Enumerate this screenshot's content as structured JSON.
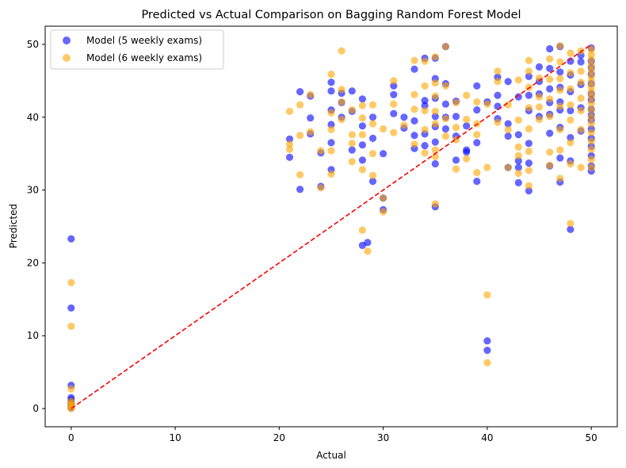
{
  "chart_data": {
    "type": "scatter",
    "title": "Predicted vs Actual Comparison on Bagging Random Forest Model",
    "xlabel": "Actual",
    "ylabel": "Predicted",
    "xlim": [
      -2.5,
      52.5
    ],
    "ylim": [
      -2.5,
      52.5
    ],
    "xticks": [
      0,
      10,
      20,
      30,
      40,
      50
    ],
    "yticks": [
      0,
      10,
      20,
      30,
      40,
      50
    ],
    "grid": false,
    "legend_position": "top-left",
    "reference_line": {
      "x": [
        0,
        50
      ],
      "y": [
        0,
        50
      ],
      "color": "#ff0000",
      "style": "dashed"
    },
    "series": [
      {
        "name": "Model (5 weekly exams)",
        "color": "#0000ff",
        "points": [
          [
            0,
            23.3
          ],
          [
            0,
            13.8
          ],
          [
            0,
            3.2
          ],
          [
            0,
            1.5
          ],
          [
            0,
            1.2
          ],
          [
            0,
            0.8
          ],
          [
            0,
            0.5
          ],
          [
            0,
            0.3
          ],
          [
            0,
            0.1
          ],
          [
            21,
            37
          ],
          [
            21,
            34.5
          ],
          [
            22,
            43.5
          ],
          [
            22,
            30.1
          ],
          [
            23,
            42.9
          ],
          [
            23,
            39.9
          ],
          [
            23,
            37.7
          ],
          [
            24,
            30.5
          ],
          [
            24,
            35.1
          ],
          [
            25,
            44.8
          ],
          [
            25,
            43.6
          ],
          [
            25,
            41
          ],
          [
            25,
            39
          ],
          [
            25,
            36.5
          ],
          [
            25,
            32.8
          ],
          [
            26,
            43.3
          ],
          [
            26,
            42
          ],
          [
            26,
            40
          ],
          [
            27,
            43.6
          ],
          [
            27,
            40.8
          ],
          [
            27,
            35.5
          ],
          [
            28,
            42.5
          ],
          [
            28,
            38.8
          ],
          [
            28,
            36.2
          ],
          [
            28,
            34.1
          ],
          [
            28,
            22.4
          ],
          [
            28.5,
            22.8
          ],
          [
            29,
            40
          ],
          [
            29,
            37.1
          ],
          [
            29,
            31.2
          ],
          [
            30,
            35
          ],
          [
            30,
            27.3
          ],
          [
            30,
            28.9
          ],
          [
            31,
            44.3
          ],
          [
            31,
            43.1
          ],
          [
            31,
            40.5
          ],
          [
            32,
            40
          ],
          [
            32,
            38.5
          ],
          [
            33,
            46.6
          ],
          [
            33,
            39.5
          ],
          [
            33,
            37.5
          ],
          [
            33,
            35.7
          ],
          [
            34,
            48.1
          ],
          [
            34,
            42.3
          ],
          [
            34,
            41.6
          ],
          [
            34,
            37.7
          ],
          [
            34,
            36.1
          ],
          [
            35,
            48.1
          ],
          [
            35,
            45.3
          ],
          [
            35,
            42.6
          ],
          [
            35,
            40.1
          ],
          [
            35,
            38.7
          ],
          [
            35,
            36.6
          ],
          [
            35,
            33.6
          ],
          [
            35,
            27.7
          ],
          [
            36,
            49.7
          ],
          [
            36,
            44.6
          ],
          [
            36,
            41.8
          ],
          [
            36,
            40
          ],
          [
            36,
            38.4
          ],
          [
            37,
            42.2
          ],
          [
            37,
            40.1
          ],
          [
            37,
            37.4
          ],
          [
            37,
            34.1
          ],
          [
            38,
            38.8
          ],
          [
            38,
            35.5
          ],
          [
            38,
            35.2
          ],
          [
            39,
            44.3
          ],
          [
            39,
            41
          ],
          [
            39,
            36.5
          ],
          [
            39,
            31.2
          ],
          [
            40,
            42.1
          ],
          [
            40,
            9.3
          ],
          [
            40,
            8
          ],
          [
            41,
            45.5
          ],
          [
            41,
            43
          ],
          [
            41,
            39.8
          ],
          [
            41,
            41.5
          ],
          [
            42,
            44.9
          ],
          [
            42,
            39.1
          ],
          [
            42,
            37.4
          ],
          [
            42,
            33.1
          ],
          [
            43,
            42.8
          ],
          [
            43,
            37.6
          ],
          [
            43,
            34
          ],
          [
            43,
            33.1
          ],
          [
            43,
            31
          ],
          [
            44,
            45.6
          ],
          [
            44,
            43
          ],
          [
            44,
            40.9
          ],
          [
            44,
            36.4
          ],
          [
            44,
            33.7
          ],
          [
            44,
            29.9
          ],
          [
            45,
            46.9
          ],
          [
            45,
            43.2
          ],
          [
            45,
            40.1
          ],
          [
            45,
            44.9
          ],
          [
            46,
            49.4
          ],
          [
            46,
            46.7
          ],
          [
            46,
            43.9
          ],
          [
            46,
            42
          ],
          [
            46,
            40.4
          ],
          [
            46,
            37.8
          ],
          [
            46,
            33.3
          ],
          [
            47,
            49.7
          ],
          [
            47,
            46.2
          ],
          [
            47,
            44.1
          ],
          [
            47,
            42.1
          ],
          [
            47,
            41
          ],
          [
            47,
            38.6
          ],
          [
            47,
            34.4
          ],
          [
            47,
            31.1
          ],
          [
            48,
            47.7
          ],
          [
            48,
            45.8
          ],
          [
            48,
            43.5
          ],
          [
            48,
            40.9
          ],
          [
            48,
            37.2
          ],
          [
            48,
            34
          ],
          [
            48,
            24.6
          ],
          [
            49,
            48.5
          ],
          [
            49,
            44.5
          ],
          [
            49,
            41.3
          ],
          [
            49,
            38.1
          ],
          [
            49,
            47.6
          ],
          [
            50,
            49.5
          ],
          [
            50,
            47.7
          ],
          [
            50,
            46.8
          ],
          [
            50,
            45.9
          ],
          [
            50,
            44.6
          ],
          [
            50,
            43.2
          ],
          [
            50,
            42.4
          ],
          [
            50,
            41.1
          ],
          [
            50,
            40.3
          ],
          [
            50,
            39.6
          ],
          [
            50,
            38.4
          ],
          [
            50,
            37.1
          ],
          [
            50,
            36
          ],
          [
            50,
            34.7
          ],
          [
            50,
            33.3
          ],
          [
            50,
            32.6
          ]
        ]
      },
      {
        "name": "Model (6 weekly exams)",
        "color": "#ffa500",
        "points": [
          [
            0,
            17.3
          ],
          [
            0,
            11.3
          ],
          [
            0,
            2.7
          ],
          [
            0,
            1
          ],
          [
            0,
            0.7
          ],
          [
            0,
            0.4
          ],
          [
            0,
            0.2
          ],
          [
            0,
            0
          ],
          [
            21,
            40.8
          ],
          [
            21,
            36.3
          ],
          [
            21,
            35.6
          ],
          [
            22,
            41.7
          ],
          [
            22,
            37.5
          ],
          [
            22,
            32.1
          ],
          [
            23,
            43.1
          ],
          [
            23,
            38
          ],
          [
            24,
            35.4
          ],
          [
            24,
            30.3
          ],
          [
            25,
            45.9
          ],
          [
            25,
            40.6
          ],
          [
            25,
            38.3
          ],
          [
            25,
            35.4
          ],
          [
            25,
            32.2
          ],
          [
            26,
            49.1
          ],
          [
            26,
            43.8
          ],
          [
            26,
            42.1
          ],
          [
            26,
            39.7
          ],
          [
            27,
            41
          ],
          [
            27,
            37.6
          ],
          [
            27,
            36.4
          ],
          [
            27,
            33.9
          ],
          [
            28,
            41.6
          ],
          [
            28,
            39.9
          ],
          [
            28,
            37.6
          ],
          [
            28,
            32.8
          ],
          [
            28,
            24.5
          ],
          [
            28.5,
            21.6
          ],
          [
            29,
            41.7
          ],
          [
            29,
            39.1
          ],
          [
            29,
            35
          ],
          [
            29,
            32
          ],
          [
            30,
            38.4
          ],
          [
            30,
            28.9
          ],
          [
            30,
            27
          ],
          [
            31,
            45
          ],
          [
            31,
            41.8
          ],
          [
            31,
            37.9
          ],
          [
            32,
            38.9
          ],
          [
            33,
            47.8
          ],
          [
            33,
            43.1
          ],
          [
            33,
            41.1
          ],
          [
            33,
            36.3
          ],
          [
            34,
            47.7
          ],
          [
            34,
            44.3
          ],
          [
            34,
            40.9
          ],
          [
            34,
            38.3
          ],
          [
            34,
            35.1
          ],
          [
            35,
            48.3
          ],
          [
            35,
            44.7
          ],
          [
            35,
            42.9
          ],
          [
            35,
            40.8
          ],
          [
            35,
            39.1
          ],
          [
            35,
            35.5
          ],
          [
            35,
            34.6
          ],
          [
            35,
            28.1
          ],
          [
            36,
            49.7
          ],
          [
            36,
            44.3
          ],
          [
            36,
            39.8
          ],
          [
            36,
            37.4
          ],
          [
            37,
            42
          ],
          [
            37,
            38.6
          ],
          [
            37,
            36.9
          ],
          [
            37,
            32.9
          ],
          [
            38,
            43
          ],
          [
            38,
            39.7
          ],
          [
            38,
            34.3
          ],
          [
            39,
            42.1
          ],
          [
            39,
            39.1
          ],
          [
            39,
            37.6
          ],
          [
            39,
            32.4
          ],
          [
            40,
            41.8
          ],
          [
            40,
            33.1
          ],
          [
            40,
            15.6
          ],
          [
            40,
            6.3
          ],
          [
            41,
            46.3
          ],
          [
            41,
            44.9
          ],
          [
            41,
            39.3
          ],
          [
            42,
            41.7
          ],
          [
            42,
            38.3
          ],
          [
            42,
            33.1
          ],
          [
            43,
            45.1
          ],
          [
            43,
            39.6
          ],
          [
            43,
            35.9
          ],
          [
            43,
            34.7
          ],
          [
            43,
            32.3
          ],
          [
            44,
            47.8
          ],
          [
            44,
            46.3
          ],
          [
            44,
            44.1
          ],
          [
            44,
            41.3
          ],
          [
            44,
            38.4
          ],
          [
            44,
            35.3
          ],
          [
            44,
            32.7
          ],
          [
            44,
            30.6
          ],
          [
            45,
            45.4
          ],
          [
            45,
            42.8
          ],
          [
            45,
            41.4
          ],
          [
            45,
            39.7
          ],
          [
            46,
            48
          ],
          [
            46,
            45.2
          ],
          [
            46,
            42.5
          ],
          [
            46,
            40.1
          ],
          [
            46,
            35.2
          ],
          [
            46,
            33.4
          ],
          [
            47,
            49.8
          ],
          [
            47,
            47.6
          ],
          [
            47,
            45.3
          ],
          [
            47,
            43.7
          ],
          [
            47,
            41.5
          ],
          [
            47,
            38.3
          ],
          [
            47,
            35.5
          ],
          [
            47,
            31.6
          ],
          [
            48,
            48.8
          ],
          [
            48,
            46.1
          ],
          [
            48,
            43.9
          ],
          [
            48,
            41.7
          ],
          [
            48,
            39.6
          ],
          [
            48,
            36.5
          ],
          [
            48,
            25.4
          ],
          [
            48,
            33.6
          ],
          [
            49,
            49.1
          ],
          [
            49,
            46.3
          ],
          [
            49,
            44.8
          ],
          [
            49,
            42.6
          ],
          [
            49,
            40.9
          ],
          [
            49,
            38.3
          ],
          [
            49,
            33.1
          ],
          [
            50,
            49.3
          ],
          [
            50,
            48.6
          ],
          [
            50,
            47.9
          ],
          [
            50,
            47.1
          ],
          [
            50,
            46.4
          ],
          [
            50,
            45.6
          ],
          [
            50,
            44.9
          ],
          [
            50,
            44.2
          ],
          [
            50,
            43.5
          ],
          [
            50,
            42.8
          ],
          [
            50,
            41.9
          ],
          [
            50,
            41
          ],
          [
            50,
            40
          ],
          [
            50,
            39.1
          ],
          [
            50,
            37.9
          ],
          [
            50,
            36.7
          ],
          [
            50,
            35.6
          ],
          [
            50,
            34.2
          ],
          [
            50,
            33.1
          ]
        ]
      }
    ]
  }
}
